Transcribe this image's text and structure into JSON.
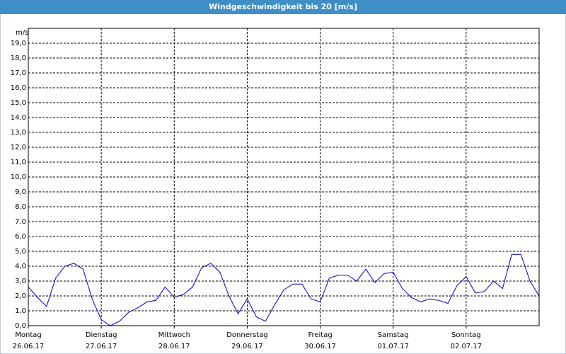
{
  "chart_data": {
    "type": "line",
    "title": "Windgeschwindigkeit bis 20 [m/s]",
    "y_unit": "m/s",
    "series": [
      {
        "color": "#0000c0",
        "values": [
          2.6,
          1.9,
          1.3,
          3.2,
          4.0,
          4.2,
          3.8,
          1.8,
          0.4,
          0.0,
          0.3,
          0.9,
          1.2,
          1.6,
          1.7,
          2.6,
          1.9,
          2.1,
          2.6,
          3.9,
          4.2,
          3.6,
          2.0,
          0.8,
          1.8,
          0.6,
          0.3,
          1.4,
          2.4,
          2.8,
          2.8,
          1.8,
          1.6,
          3.2,
          3.4,
          3.4,
          3.0,
          3.8,
          2.9,
          3.5,
          3.6,
          2.5,
          1.9,
          1.6,
          1.8,
          1.7,
          1.5,
          2.7,
          3.3,
          2.2,
          2.3,
          3.0,
          2.5,
          4.8,
          4.8,
          3.0,
          2.0
        ]
      }
    ],
    "xlim": [
      0,
      7
    ],
    "xticks": [
      {
        "value": 0,
        "label": "Montag",
        "date": "26.06.17"
      },
      {
        "value": 1,
        "label": "Dienstag",
        "date": "27.06.17"
      },
      {
        "value": 2,
        "label": "Mittwoch",
        "date": "28.06.17"
      },
      {
        "value": 3,
        "label": "Donnerstag",
        "date": "29.06.17"
      },
      {
        "value": 4,
        "label": "Freitag",
        "date": "30.06.17"
      },
      {
        "value": 5,
        "label": "Samstag",
        "date": "01.07.17"
      },
      {
        "value": 6,
        "label": "Sonntag",
        "date": "02.07.17"
      }
    ],
    "ylim": [
      0,
      20
    ],
    "yticks": [
      {
        "value": 0,
        "label": "0,0"
      },
      {
        "value": 1,
        "label": "1,0"
      },
      {
        "value": 2,
        "label": "2,0"
      },
      {
        "value": 3,
        "label": "3,0"
      },
      {
        "value": 4,
        "label": "4,0"
      },
      {
        "value": 5,
        "label": "5,0"
      },
      {
        "value": 6,
        "label": "6,0"
      },
      {
        "value": 7,
        "label": "7,0"
      },
      {
        "value": 8,
        "label": "8,0"
      },
      {
        "value": 9,
        "label": "9,0"
      },
      {
        "value": 10,
        "label": "10,0"
      },
      {
        "value": 11,
        "label": "11,0"
      },
      {
        "value": 12,
        "label": "12,0"
      },
      {
        "value": 13,
        "label": "13,0"
      },
      {
        "value": 14,
        "label": "14,0"
      },
      {
        "value": 15,
        "label": "15,0"
      },
      {
        "value": 16,
        "label": "16,0"
      },
      {
        "value": 17,
        "label": "17,0"
      },
      {
        "value": 18,
        "label": "18,0"
      },
      {
        "value": 19,
        "label": "19,0"
      }
    ],
    "grid": true
  }
}
